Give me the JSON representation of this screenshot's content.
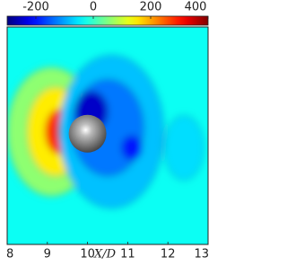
{
  "chart_data": {
    "type": "contour",
    "colorbar": {
      "clim": [
        -300,
        400
      ],
      "ticks": [
        -200,
        0,
        200,
        400
      ]
    },
    "xlabel": "X/D",
    "xlim": [
      8,
      13
    ],
    "xticks": [
      8,
      9,
      10,
      11,
      12,
      13
    ],
    "ylim": [
      -2.8,
      2.6
    ],
    "background_value": -30,
    "field": [
      {
        "x": 9.1,
        "y": 0,
        "rx": 1.1,
        "ry": 1.6,
        "value": 60
      },
      {
        "x": 9.2,
        "y": 0,
        "rx": 0.7,
        "ry": 1.1,
        "value": 150
      },
      {
        "x": 9.3,
        "y": 0,
        "rx": 0.35,
        "ry": 0.55,
        "value": 280
      },
      {
        "x": 9.4,
        "y": 0,
        "rx": 0.15,
        "ry": 0.35,
        "value": 380
      },
      {
        "x": 10.6,
        "y": 0,
        "rx": 1.3,
        "ry": 1.9,
        "value": -80
      },
      {
        "x": 12.4,
        "y": -0.4,
        "rx": 0.5,
        "ry": 0.8,
        "value": -60
      },
      {
        "x": 10.5,
        "y": 0.1,
        "rx": 0.9,
        "ry": 1.2,
        "value": -130
      },
      {
        "x": 10.1,
        "y": 0.5,
        "rx": 0.4,
        "ry": 0.5,
        "value": -250
      },
      {
        "x": 11.1,
        "y": -0.4,
        "rx": 0.25,
        "ry": 0.3,
        "value": -200
      }
    ]
  }
}
